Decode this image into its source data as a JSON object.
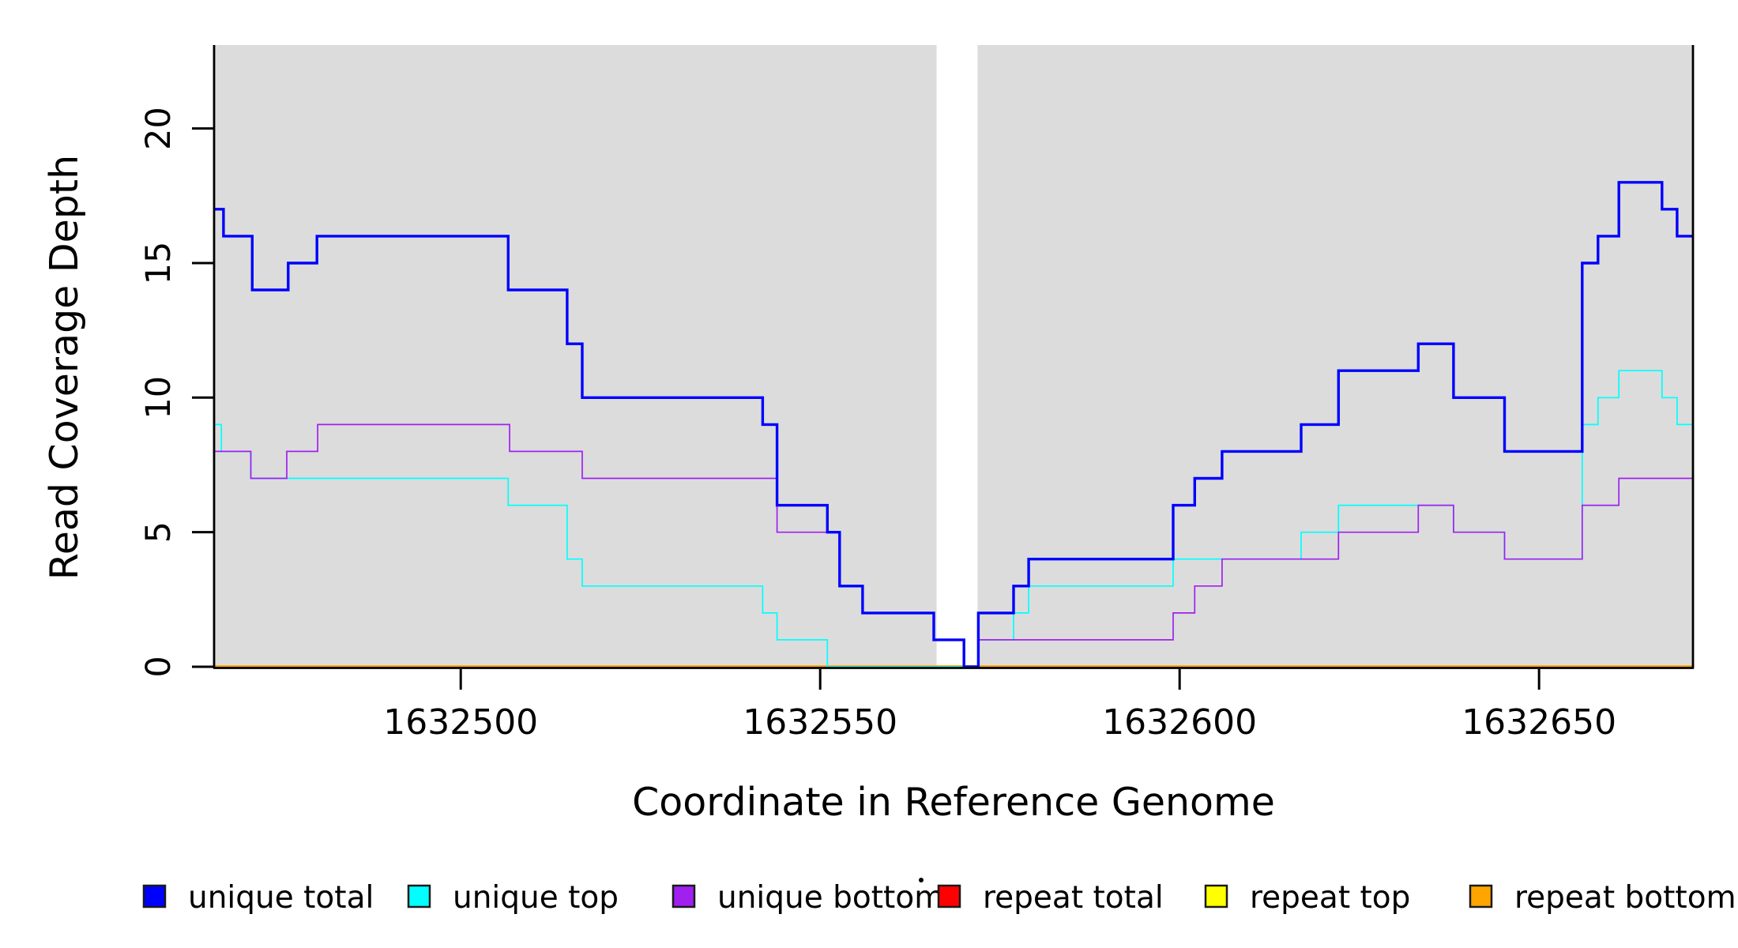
{
  "figure": {
    "background": "#ffffff",
    "panel_color": "#dcdcdc",
    "axis_color": "#000000"
  },
  "chart_data": {
    "type": "line",
    "step": true,
    "title": "",
    "xlabel": "Coordinate in Reference Genome",
    "ylabel": "Read Coverage Depth",
    "xlim": [
      1632465.8,
      1632671.3
    ],
    "ylim": [
      0,
      23.1
    ],
    "x_ticks": [
      1632500,
      1632550,
      1632600,
      1632650
    ],
    "y_ticks": [
      0,
      5,
      10,
      15,
      20
    ],
    "grid": false,
    "legend_position": "bottom",
    "background_panels": {
      "color": "#dcdcdc",
      "regions": [
        [
          1632465.8,
          1632566.2
        ],
        [
          1632571.9,
          1632671.3
        ]
      ]
    },
    "draw_order": [
      "repeat total",
      "repeat top",
      "repeat bottom",
      "unique top",
      "unique bottom",
      "unique total"
    ],
    "series": [
      {
        "name": "unique total",
        "color": "#0000ff",
        "line_width": 3.4,
        "points": [
          [
            1632465.8,
            17
          ],
          [
            1632467,
            16
          ],
          [
            1632471,
            14
          ],
          [
            1632476,
            15
          ],
          [
            1632480,
            16
          ],
          [
            1632506.6,
            14
          ],
          [
            1632514.8,
            12
          ],
          [
            1632516.9,
            10
          ],
          [
            1632542,
            9
          ],
          [
            1632544,
            6
          ],
          [
            1632551,
            5
          ],
          [
            1632552.7,
            3
          ],
          [
            1632555.9,
            2
          ],
          [
            1632565.8,
            1
          ],
          [
            1632570,
            0
          ],
          [
            1632572,
            2
          ],
          [
            1632576.9,
            3
          ],
          [
            1632579,
            4
          ],
          [
            1632599.1,
            6
          ],
          [
            1632602.1,
            7
          ],
          [
            1632605.9,
            8
          ],
          [
            1632616.9,
            9
          ],
          [
            1632622.1,
            11
          ],
          [
            1632633.2,
            12
          ],
          [
            1632638.1,
            10
          ],
          [
            1632645.2,
            8
          ],
          [
            1632656,
            15
          ],
          [
            1632658.2,
            16
          ],
          [
            1632661.1,
            18
          ],
          [
            1632667.1,
            17
          ],
          [
            1632669.2,
            16
          ]
        ]
      },
      {
        "name": "unique top",
        "color": "#00ffff",
        "line_width": 1.7,
        "points": [
          [
            1632465.8,
            9
          ],
          [
            1632466.7,
            8
          ],
          [
            1632470.8,
            7
          ],
          [
            1632506.6,
            6
          ],
          [
            1632514.8,
            4
          ],
          [
            1632516.9,
            3
          ],
          [
            1632542,
            2
          ],
          [
            1632544,
            1
          ],
          [
            1632551,
            0
          ],
          [
            1632572,
            1
          ],
          [
            1632576.9,
            2
          ],
          [
            1632579,
            3
          ],
          [
            1632599.1,
            4
          ],
          [
            1632616.9,
            5
          ],
          [
            1632622.1,
            6
          ],
          [
            1632638.1,
            5
          ],
          [
            1632645.2,
            4
          ],
          [
            1632656,
            9
          ],
          [
            1632658.2,
            10
          ],
          [
            1632661.1,
            11
          ],
          [
            1632667.1,
            10
          ],
          [
            1632669.2,
            9
          ]
        ]
      },
      {
        "name": "unique bottom",
        "color": "#a020f0",
        "line_width": 1.7,
        "points": [
          [
            1632465.8,
            8
          ],
          [
            1632470.8,
            7
          ],
          [
            1632475.8,
            8
          ],
          [
            1632480.1,
            9
          ],
          [
            1632506.8,
            8
          ],
          [
            1632516.9,
            7
          ],
          [
            1632544,
            5
          ],
          [
            1632552.7,
            3
          ],
          [
            1632555.9,
            2
          ],
          [
            1632565.8,
            1
          ],
          [
            1632570,
            0
          ],
          [
            1632572,
            1
          ],
          [
            1632599.1,
            2
          ],
          [
            1632602.1,
            3
          ],
          [
            1632605.9,
            4
          ],
          [
            1632622.1,
            5
          ],
          [
            1632633.2,
            6
          ],
          [
            1632638.1,
            5
          ],
          [
            1632645.2,
            4
          ],
          [
            1632656,
            6
          ],
          [
            1632661.1,
            7
          ]
        ]
      },
      {
        "name": "repeat total",
        "color": "#ff0000",
        "line_width": 3.6,
        "points": [
          [
            1632465.8,
            0
          ]
        ]
      },
      {
        "name": "repeat top",
        "color": "#ffff00",
        "line_width": 3.6,
        "points": [
          [
            1632465.8,
            0
          ]
        ]
      },
      {
        "name": "repeat bottom",
        "color": "#ffa500",
        "line_width": 3.6,
        "points": [
          [
            1632465.8,
            0
          ]
        ]
      }
    ]
  },
  "legend": {
    "items": [
      {
        "label": "unique total",
        "color": "#0000ff"
      },
      {
        "label": "unique top",
        "color": "#00ffff"
      },
      {
        "label": "unique bottom",
        "color": "#a020f0"
      },
      {
        "label": "repeat total",
        "color": "#ff0000"
      },
      {
        "label": "repeat top",
        "color": "#ffff00"
      },
      {
        "label": "repeat bottom",
        "color": "#ffa500"
      }
    ]
  },
  "artifacts": {
    "stray_dot": {
      "present": true
    }
  }
}
